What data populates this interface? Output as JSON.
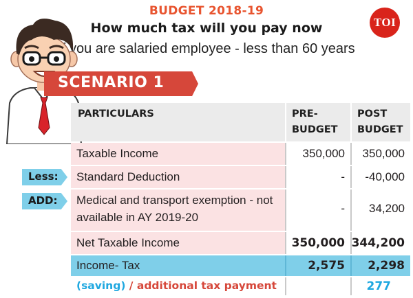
{
  "header": {
    "kicker": "BUDGET 2018-19",
    "title": "How much tax will you pay now",
    "subtitle": "If you are salaried employee - less than 60 years",
    "logo": "TOI"
  },
  "scenario": "SCENARIO 1",
  "table": {
    "headers": {
      "particulars": "PARTICULARS",
      "pre_line1": "PRE-",
      "pre_line2": "BUDGET",
      "post_line1": "POST",
      "post_line2": "BUDGET"
    },
    "rows": [
      {
        "label": "Taxable Income",
        "pre": "350,000",
        "post": "350,000"
      },
      {
        "label": "Standard Deduction",
        "pre": "-",
        "post": "-40,000",
        "tag": "Less:"
      },
      {
        "label_line1": "Medical and transport exemption - not",
        "label_line2": "available in AY 2019-20",
        "pre": "-",
        "post": "34,200",
        "tag": "ADD:"
      },
      {
        "label": "Net Taxable Income",
        "pre": "350,000",
        "post": "344,200"
      },
      {
        "label": "Income- Tax",
        "pre": "2,575",
        "post": "2,298"
      }
    ],
    "footer": {
      "saving": "(saving)",
      "rest": " / additional tax payment",
      "post": "277"
    }
  },
  "colors": {
    "accent_orange": "#e8542f",
    "scenario_red": "#d6473a",
    "logo_red": "#d9241b",
    "pink_row": "#fbe2e3",
    "blue_row": "#7fcfe9",
    "saving_blue": "#1fa8e0",
    "additional_red": "#d6473a"
  },
  "icons": {
    "figure": "businessman-illustration-icon"
  }
}
